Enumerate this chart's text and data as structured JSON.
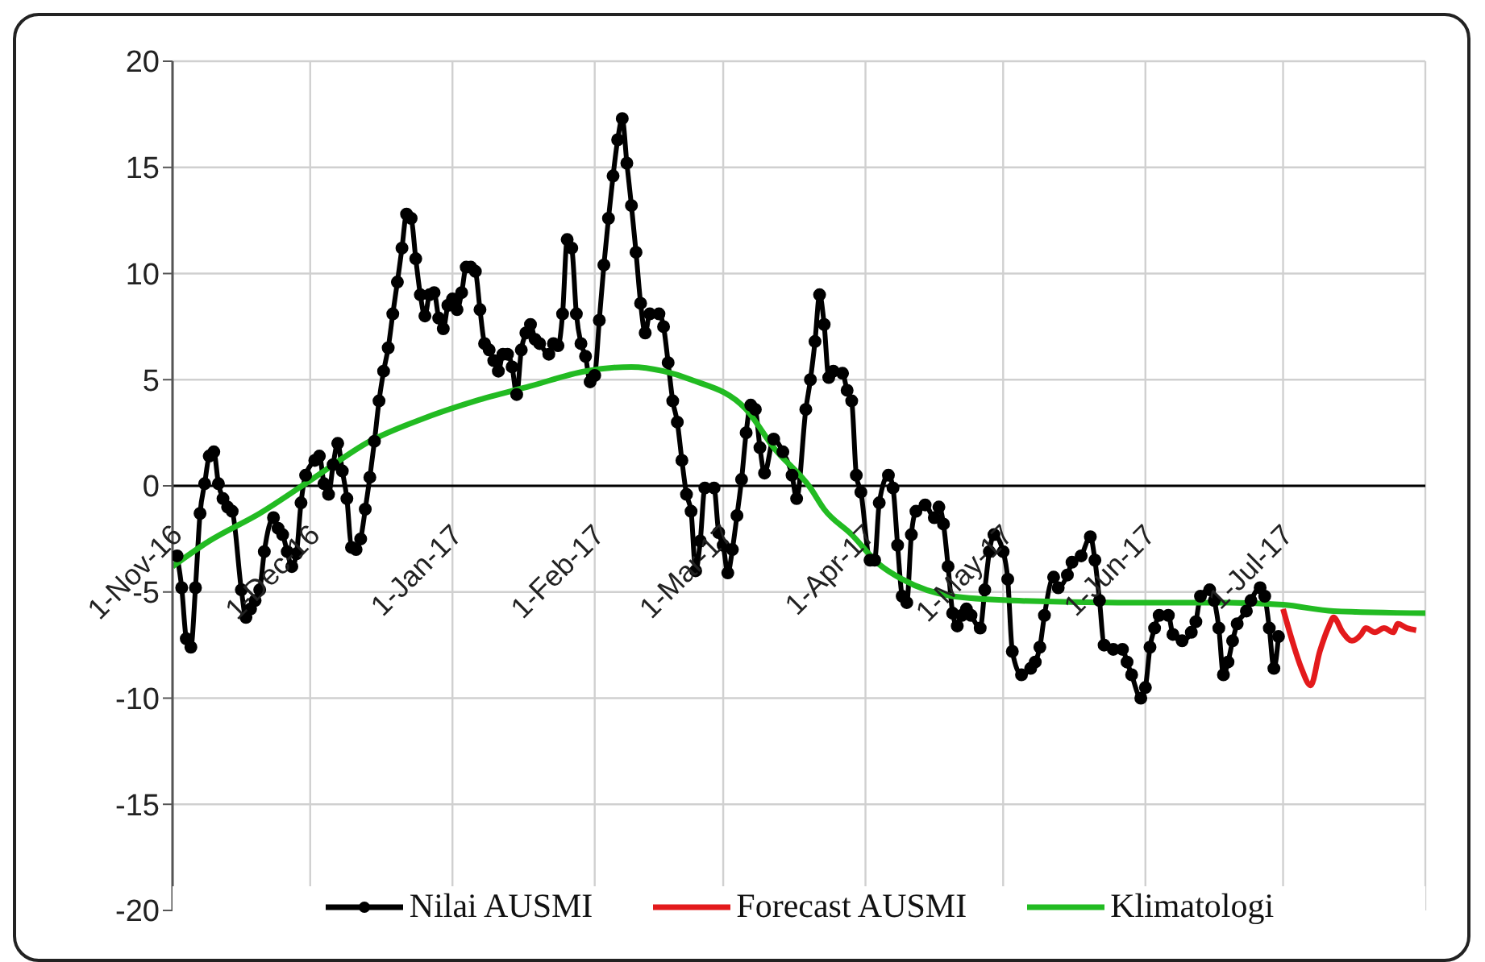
{
  "chart_data": {
    "type": "line",
    "xlim": [
      "2016-11-01",
      "2017-08-01"
    ],
    "xticks": [
      {
        "value": "2016-11-01",
        "label": "1-Nov-16"
      },
      {
        "value": "2016-12-01",
        "label": "1-Dec-16"
      },
      {
        "value": "2017-01-01",
        "label": "1-Jan-17"
      },
      {
        "value": "2017-02-01",
        "label": "1-Feb-17"
      },
      {
        "value": "2017-03-01",
        "label": "1-Mar-17"
      },
      {
        "value": "2017-04-01",
        "label": "1-Apr-17"
      },
      {
        "value": "2017-05-01",
        "label": "1-May-17"
      },
      {
        "value": "2017-06-01",
        "label": "1-Jun-17"
      },
      {
        "value": "2017-07-01",
        "label": "1-Jul-17"
      },
      {
        "value": "2017-08-01",
        "label": null
      }
    ],
    "ylim": [
      -20,
      20
    ],
    "yticks": [
      -20,
      -15,
      -10,
      -5,
      0,
      5,
      10,
      15,
      20
    ],
    "grid": true,
    "legend": "bottom",
    "series": [
      {
        "name": "Nilai AUSMI",
        "color": "#000000",
        "marker": "circle",
        "x": [
          "2016-11-02",
          "2016-11-03",
          "2016-11-04",
          "2016-11-05",
          "2016-11-06",
          "2016-11-07",
          "2016-11-08",
          "2016-11-09",
          "2016-11-10",
          "2016-11-11",
          "2016-11-12",
          "2016-11-13",
          "2016-11-14",
          "2016-11-16",
          "2016-11-17",
          "2016-11-18",
          "2016-11-19",
          "2016-11-20",
          "2016-11-21",
          "2016-11-23",
          "2016-11-24",
          "2016-11-25",
          "2016-11-26",
          "2016-11-27",
          "2016-11-28",
          "2016-11-29",
          "2016-11-30",
          "2016-12-02",
          "2016-12-03",
          "2016-12-04",
          "2016-12-05",
          "2016-12-06",
          "2016-12-07",
          "2016-12-08",
          "2016-12-09",
          "2016-12-10",
          "2016-12-11",
          "2016-12-12",
          "2016-12-13",
          "2016-12-14",
          "2016-12-15",
          "2016-12-16",
          "2016-12-17",
          "2016-12-18",
          "2016-12-19",
          "2016-12-20",
          "2016-12-21",
          "2016-12-22",
          "2016-12-23",
          "2016-12-24",
          "2016-12-25",
          "2016-12-26",
          "2016-12-27",
          "2016-12-28",
          "2016-12-29",
          "2016-12-30",
          "2016-12-31",
          "2017-01-01",
          "2017-01-02",
          "2017-01-03",
          "2017-01-04",
          "2017-01-05",
          "2017-01-06",
          "2017-01-07",
          "2017-01-08",
          "2017-01-09",
          "2017-01-10",
          "2017-01-11",
          "2017-01-12",
          "2017-01-13",
          "2017-01-14",
          "2017-01-15",
          "2017-01-16",
          "2017-01-17",
          "2017-01-18",
          "2017-01-19",
          "2017-01-20",
          "2017-01-22",
          "2017-01-23",
          "2017-01-24",
          "2017-01-25",
          "2017-01-26",
          "2017-01-27",
          "2017-01-28",
          "2017-01-29",
          "2017-01-30",
          "2017-01-31",
          "2017-02-01",
          "2017-02-02",
          "2017-02-03",
          "2017-02-04",
          "2017-02-05",
          "2017-02-06",
          "2017-02-07",
          "2017-02-08",
          "2017-02-09",
          "2017-02-10",
          "2017-02-11",
          "2017-02-12",
          "2017-02-13",
          "2017-02-15",
          "2017-02-16",
          "2017-02-17",
          "2017-02-18",
          "2017-02-19",
          "2017-02-20",
          "2017-02-21",
          "2017-02-22",
          "2017-02-23",
          "2017-02-24",
          "2017-02-25",
          "2017-02-27",
          "2017-02-28",
          "2017-03-01",
          "2017-03-02",
          "2017-03-03",
          "2017-03-04",
          "2017-03-05",
          "2017-03-06",
          "2017-03-07",
          "2017-03-08",
          "2017-03-09",
          "2017-03-10",
          "2017-03-12",
          "2017-03-14",
          "2017-03-16",
          "2017-03-17",
          "2017-03-19",
          "2017-03-20",
          "2017-03-21",
          "2017-03-22",
          "2017-03-23",
          "2017-03-24",
          "2017-03-25",
          "2017-03-27",
          "2017-03-28",
          "2017-03-29",
          "2017-03-30",
          "2017-03-31",
          "2017-04-02",
          "2017-04-03",
          "2017-04-04",
          "2017-04-06",
          "2017-04-07",
          "2017-04-08",
          "2017-04-09",
          "2017-04-10",
          "2017-04-11",
          "2017-04-12",
          "2017-04-14",
          "2017-04-16",
          "2017-04-17",
          "2017-04-18",
          "2017-04-19",
          "2017-04-20",
          "2017-04-21",
          "2017-04-22",
          "2017-04-23",
          "2017-04-24",
          "2017-04-26",
          "2017-04-27",
          "2017-04-28",
          "2017-04-29",
          "2017-05-01",
          "2017-05-02",
          "2017-05-03",
          "2017-05-05",
          "2017-05-07",
          "2017-05-08",
          "2017-05-09",
          "2017-05-10",
          "2017-05-12",
          "2017-05-13",
          "2017-05-15",
          "2017-05-16",
          "2017-05-18",
          "2017-05-20",
          "2017-05-21",
          "2017-05-22",
          "2017-05-23",
          "2017-05-25",
          "2017-05-27",
          "2017-05-28",
          "2017-05-29",
          "2017-05-31",
          "2017-06-01",
          "2017-06-02",
          "2017-06-03",
          "2017-06-04",
          "2017-06-06",
          "2017-06-07",
          "2017-06-09",
          "2017-06-11",
          "2017-06-12",
          "2017-06-13",
          "2017-06-15",
          "2017-06-16",
          "2017-06-17",
          "2017-06-18",
          "2017-06-19",
          "2017-06-20",
          "2017-06-21",
          "2017-06-23",
          "2017-06-24",
          "2017-06-26",
          "2017-06-27",
          "2017-06-28",
          "2017-06-29",
          "2017-06-30"
        ],
        "values": [
          -3.3,
          -4.8,
          -7.2,
          -7.6,
          -4.8,
          -1.3,
          0.1,
          1.4,
          1.6,
          0.1,
          -0.6,
          -1.0,
          -1.2,
          -4.9,
          -6.2,
          -5.8,
          -5.4,
          -4.9,
          -3.1,
          -1.5,
          -2.0,
          -2.3,
          -3.1,
          -3.8,
          -3.2,
          -0.8,
          0.5,
          1.2,
          1.4,
          0.1,
          -0.4,
          1.0,
          2.0,
          0.7,
          -0.6,
          -2.9,
          -3.0,
          -2.5,
          -1.1,
          0.4,
          2.1,
          4.0,
          5.4,
          6.5,
          8.1,
          9.6,
          11.2,
          12.8,
          12.6,
          10.7,
          9.0,
          8.0,
          9.0,
          9.1,
          7.9,
          7.4,
          8.5,
          8.8,
          8.3,
          9.1,
          10.3,
          10.3,
          10.1,
          8.3,
          6.7,
          6.4,
          5.9,
          5.4,
          6.2,
          6.2,
          5.6,
          4.3,
          6.4,
          7.2,
          7.6,
          6.9,
          6.7,
          6.2,
          6.7,
          6.6,
          8.1,
          11.6,
          11.2,
          8.1,
          6.7,
          6.1,
          4.9,
          5.2,
          7.8,
          10.4,
          12.6,
          14.6,
          16.3,
          17.3,
          15.2,
          13.2,
          11.0,
          8.6,
          7.2,
          8.1,
          8.1,
          7.5,
          5.8,
          4.0,
          3.0,
          1.2,
          -0.4,
          -1.2,
          -4.0,
          -2.6,
          -0.1,
          -0.1,
          -2.2,
          -2.8,
          -4.1,
          -3.0,
          -1.4,
          0.3,
          2.5,
          3.8,
          3.6,
          1.8,
          0.6,
          2.2,
          1.6,
          0.5,
          -0.6,
          3.6,
          5.0,
          6.8,
          9.0,
          7.6,
          5.1,
          5.4,
          5.3,
          4.5,
          4.0,
          0.5,
          -0.3,
          -3.5,
          -3.5,
          -0.8,
          0.5,
          -0.1,
          -2.8,
          -5.2,
          -5.5,
          -2.3,
          -1.2,
          -0.9,
          -1.5,
          -1.0,
          -1.8,
          -3.8,
          -6.0,
          -6.6,
          -6.1,
          -5.8,
          -6.1,
          -6.7,
          -4.9,
          -3.1,
          -2.3,
          -3.1,
          -4.4,
          -7.8,
          -8.9,
          -8.6,
          -8.3,
          -7.6,
          -6.1,
          -4.3,
          -4.8,
          -4.2,
          -3.6,
          -3.3,
          -2.4,
          -3.5,
          -5.4,
          -7.5,
          -7.7,
          -7.7,
          -8.3,
          -8.9,
          -10.0,
          -9.5,
          -7.6,
          -6.7,
          -6.1,
          -6.1,
          -7.0,
          -7.3,
          -6.9,
          -6.4,
          -5.2,
          -4.9,
          -5.4,
          -6.7,
          -8.9,
          -8.3,
          -7.3,
          -6.5,
          -5.9,
          -5.4,
          -4.8,
          -5.2,
          -6.7,
          -8.6,
          -7.1
        ]
      },
      {
        "name": "Forecast AUSMI",
        "color": "#e31a1c",
        "x": [
          "2017-07-01",
          "2017-07-03",
          "2017-07-05",
          "2017-07-07",
          "2017-07-09",
          "2017-07-11",
          "2017-07-12",
          "2017-07-14",
          "2017-07-16",
          "2017-07-18",
          "2017-07-19",
          "2017-07-21",
          "2017-07-23",
          "2017-07-25",
          "2017-07-26",
          "2017-07-28",
          "2017-07-30"
        ],
        "values": [
          -5.8,
          -7.3,
          -8.6,
          -9.4,
          -7.8,
          -6.6,
          -6.2,
          -6.9,
          -7.3,
          -7.0,
          -6.7,
          -6.9,
          -6.7,
          -6.9,
          -6.5,
          -6.7,
          -6.8
        ]
      },
      {
        "name": "Klimatologi",
        "color": "#22bb22",
        "x": [
          "2016-11-01",
          "2016-11-09",
          "2016-11-20",
          "2016-12-02",
          "2016-12-14",
          "2016-12-26",
          "2017-01-06",
          "2017-01-18",
          "2017-01-30",
          "2017-02-09",
          "2017-02-16",
          "2017-02-22",
          "2017-03-06",
          "2017-03-12",
          "2017-03-20",
          "2017-03-23",
          "2017-03-29",
          "2017-04-04",
          "2017-04-09",
          "2017-04-20",
          "2017-05-03",
          "2017-05-26",
          "2017-06-19",
          "2017-07-01",
          "2017-07-12",
          "2017-08-01"
        ],
        "values": [
          -3.8,
          -2.6,
          -1.3,
          0.4,
          2.1,
          3.2,
          4.0,
          4.7,
          5.4,
          5.6,
          5.4,
          5.0,
          3.6,
          1.8,
          -0.1,
          -1.1,
          -2.3,
          -3.7,
          -4.4,
          -5.2,
          -5.4,
          -5.5,
          -5.5,
          -5.6,
          -5.9,
          -6.0
        ]
      }
    ]
  }
}
